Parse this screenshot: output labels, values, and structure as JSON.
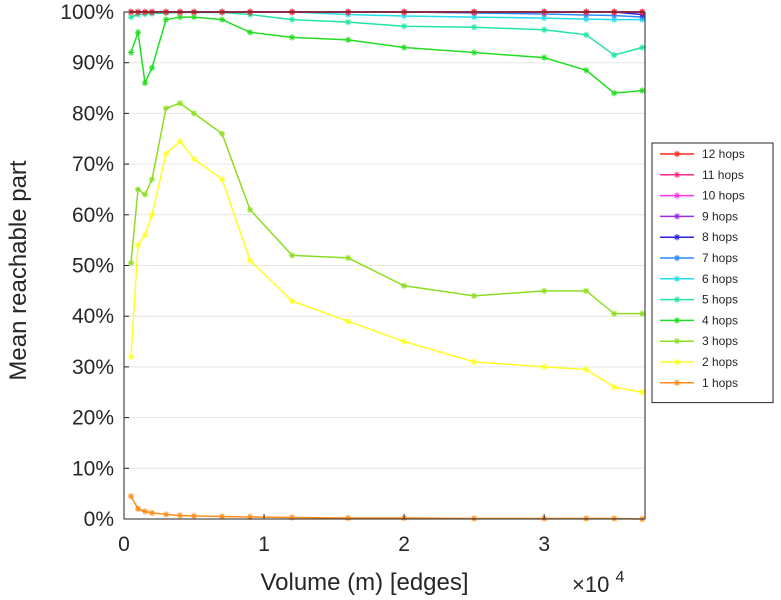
{
  "chart_data": {
    "type": "line",
    "xlabel": "Volume (m) [edges]",
    "ylabel": "Mean reachable part",
    "x_multiplier_base": "×10",
    "x_multiplier_exp": "4",
    "x_ticks": [
      0,
      1,
      2,
      3
    ],
    "x_tick_labels": [
      "0",
      "1",
      "2",
      "3"
    ],
    "y_ticks": [
      0,
      10,
      20,
      30,
      40,
      50,
      60,
      70,
      80,
      90,
      100
    ],
    "y_tick_labels": [
      "0%",
      "10%",
      "20%",
      "30%",
      "40%",
      "50%",
      "60%",
      "70%",
      "80%",
      "90%",
      "100%"
    ],
    "xlim": [
      0,
      3.72
    ],
    "ylim": [
      0,
      100
    ],
    "grid": "horizontal",
    "legend_position": "right",
    "x": [
      0.05,
      0.1,
      0.15,
      0.2,
      0.3,
      0.4,
      0.5,
      0.7,
      0.9,
      1.2,
      1.6,
      2.0,
      2.5,
      3.0,
      3.3,
      3.5,
      3.7
    ],
    "series": [
      {
        "name": "12 hops",
        "color": "#ff2a1a",
        "values": [
          100,
          100,
          100,
          100,
          100,
          100,
          100,
          100,
          100,
          100,
          100,
          100,
          100,
          100,
          100,
          100,
          100
        ]
      },
      {
        "name": "11 hops",
        "color": "#ff2a8a",
        "values": [
          100,
          100,
          100,
          100,
          100,
          100,
          100,
          100,
          100,
          100,
          100,
          100,
          100,
          100,
          100,
          100,
          100
        ]
      },
      {
        "name": "10 hops",
        "color": "#ff33ee",
        "values": [
          100,
          100,
          100,
          100,
          100,
          100,
          100,
          100,
          100,
          100,
          100,
          100,
          100,
          100,
          100,
          100,
          100
        ]
      },
      {
        "name": "9 hops",
        "color": "#9a2be6",
        "values": [
          100,
          100,
          100,
          100,
          100,
          100,
          100,
          100,
          100,
          100,
          100,
          100,
          100,
          100,
          100,
          100,
          100
        ]
      },
      {
        "name": "8 hops",
        "color": "#2a1fe6",
        "values": [
          100,
          100,
          100,
          100,
          100,
          100,
          100,
          100,
          100,
          100,
          100,
          100,
          100,
          100,
          100,
          100,
          99.5
        ]
      },
      {
        "name": "7 hops",
        "color": "#2a8cff",
        "values": [
          100,
          100,
          100,
          100,
          100,
          100,
          100,
          100,
          100,
          100,
          100,
          100,
          99.8,
          99.6,
          99.4,
          99.3,
          99
        ]
      },
      {
        "name": "6 hops",
        "color": "#22ddee",
        "values": [
          100,
          100,
          100,
          100,
          100,
          100,
          100,
          100,
          100,
          100,
          99.5,
          99.2,
          99,
          98.8,
          98.6,
          98.5,
          98.5
        ]
      },
      {
        "name": "5 hops",
        "color": "#22e6a0",
        "values": [
          99,
          99.5,
          99.6,
          99.7,
          99.8,
          99.9,
          99.9,
          99.9,
          99.5,
          98.5,
          98,
          97.2,
          97,
          96.5,
          95.5,
          91.5,
          93
        ]
      },
      {
        "name": "4 hops",
        "color": "#22dd22",
        "values": [
          92,
          96,
          86,
          89,
          98.5,
          99,
          99,
          98.5,
          96,
          95,
          94.5,
          93,
          92,
          91,
          88.5,
          84,
          84.5
        ]
      },
      {
        "name": "3 hops",
        "color": "#8cdd22",
        "values": [
          50.5,
          65,
          64,
          67,
          81,
          82,
          80,
          76,
          61,
          52,
          51.5,
          46,
          44,
          45,
          45,
          40.5,
          40.5
        ]
      },
      {
        "name": "2 hops",
        "color": "#ffff22",
        "values": [
          32,
          54,
          56,
          60,
          72,
          74.5,
          71,
          67,
          51,
          43,
          39,
          35,
          31,
          30,
          29.5,
          26,
          25
        ]
      },
      {
        "name": "1 hops",
        "color": "#ff8c1a",
        "values": [
          4.5,
          2,
          1.5,
          1.2,
          0.9,
          0.7,
          0.6,
          0.5,
          0.4,
          0.3,
          0.2,
          0.2,
          0.1,
          0.1,
          0.1,
          0.1,
          0
        ]
      }
    ]
  }
}
